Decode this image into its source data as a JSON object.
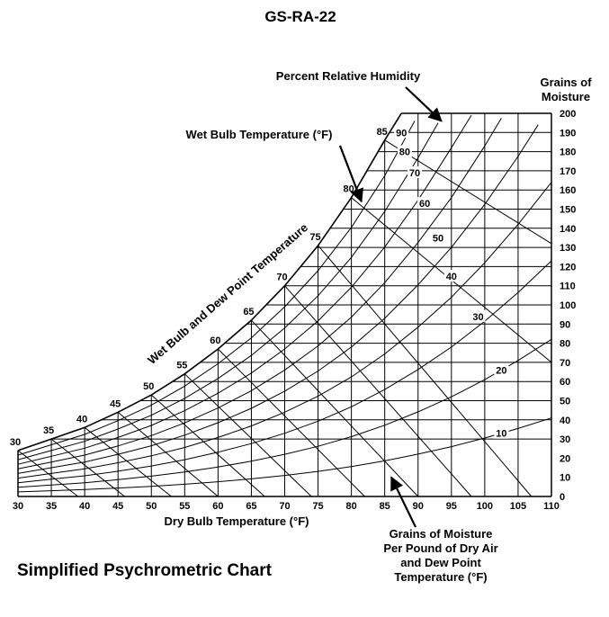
{
  "header": {
    "title": "GS-RA-22"
  },
  "footer": {
    "title": "Simplified Psychrometric Chart"
  },
  "chart_data": {
    "type": "line",
    "title": "Simplified Psychrometric Chart",
    "xlabel": "Dry Bulb Temperature (°F)",
    "ylabel": "Grains of Moisture",
    "ylabel_lines": [
      "Grains of",
      "Moisture"
    ],
    "xlim": [
      30,
      110
    ],
    "ylim": [
      0,
      200
    ],
    "x_ticks": [
      30,
      35,
      40,
      45,
      50,
      55,
      60,
      65,
      70,
      75,
      80,
      85,
      90,
      95,
      100,
      105,
      110
    ],
    "y_ticks": [
      0,
      10,
      20,
      30,
      40,
      50,
      60,
      70,
      80,
      90,
      100,
      110,
      120,
      130,
      140,
      150,
      160,
      170,
      180,
      190,
      200
    ],
    "saturation_curve": {
      "label": "Wet Bulb and Dew Point Temperature",
      "points": [
        [
          30,
          24
        ],
        [
          35,
          30
        ],
        [
          40,
          36
        ],
        [
          45,
          44
        ],
        [
          50,
          53
        ],
        [
          55,
          64
        ],
        [
          60,
          77
        ],
        [
          65,
          92
        ],
        [
          70,
          110
        ],
        [
          75,
          131
        ],
        [
          80,
          156
        ],
        [
          85,
          186
        ],
        [
          87.5,
          200
        ]
      ],
      "labels": [
        "30",
        "35",
        "40",
        "45",
        "50",
        "55",
        "60",
        "65",
        "70",
        "75",
        "80",
        "85"
      ]
    },
    "relative_humidity": {
      "label": "Percent Relative Humidity",
      "series": [
        {
          "name": "10",
          "values": [
            [
              30,
              2.4
            ],
            [
              35,
              3.0
            ],
            [
              40,
              3.6
            ],
            [
              45,
              4.4
            ],
            [
              50,
              5.3
            ],
            [
              55,
              6.4
            ],
            [
              60,
              7.7
            ],
            [
              65,
              9.2
            ],
            [
              70,
              11.0
            ],
            [
              75,
              13.1
            ],
            [
              80,
              15.6
            ],
            [
              85,
              18.6
            ],
            [
              90,
              22.1
            ],
            [
              95,
              26.0
            ],
            [
              100,
              30.5
            ],
            [
              105,
              35.5
            ],
            [
              110,
              41.0
            ]
          ],
          "label_at": [
            102.5,
            33
          ]
        },
        {
          "name": "20",
          "values": [
            [
              30,
              4.8
            ],
            [
              35,
              6.0
            ],
            [
              40,
              7.2
            ],
            [
              45,
              8.8
            ],
            [
              50,
              10.6
            ],
            [
              55,
              12.8
            ],
            [
              60,
              15.4
            ],
            [
              65,
              18.4
            ],
            [
              70,
              22.0
            ],
            [
              75,
              26.2
            ],
            [
              80,
              31.2
            ],
            [
              85,
              37.2
            ],
            [
              90,
              44.2
            ],
            [
              95,
              52.0
            ],
            [
              100,
              61.0
            ],
            [
              105,
              71.0
            ],
            [
              110,
              82.0
            ]
          ],
          "label_at": [
            102.5,
            66
          ]
        },
        {
          "name": "30",
          "values": [
            [
              30,
              7.2
            ],
            [
              35,
              9.0
            ],
            [
              40,
              10.8
            ],
            [
              45,
              13.2
            ],
            [
              50,
              15.9
            ],
            [
              55,
              19.2
            ],
            [
              60,
              23.1
            ],
            [
              65,
              27.6
            ],
            [
              70,
              33.0
            ],
            [
              75,
              39.3
            ],
            [
              80,
              46.8
            ],
            [
              85,
              55.8
            ],
            [
              90,
              66.3
            ],
            [
              95,
              78.0
            ],
            [
              100,
              91.5
            ],
            [
              105,
              106.5
            ],
            [
              110,
              123.0
            ]
          ],
          "label_at": [
            99,
            94
          ]
        },
        {
          "name": "40",
          "values": [
            [
              30,
              9.6
            ],
            [
              35,
              12.0
            ],
            [
              40,
              14.4
            ],
            [
              45,
              17.6
            ],
            [
              50,
              21.2
            ],
            [
              55,
              25.6
            ],
            [
              60,
              30.8
            ],
            [
              65,
              36.8
            ],
            [
              70,
              44.0
            ],
            [
              75,
              52.4
            ],
            [
              80,
              62.4
            ],
            [
              85,
              74.4
            ],
            [
              90,
              88.4
            ],
            [
              95,
              104.0
            ],
            [
              100,
              122.0
            ],
            [
              105,
              142.0
            ],
            [
              110,
              164.0
            ]
          ],
          "label_at": [
            95,
            115
          ]
        },
        {
          "name": "50",
          "values": [
            [
              30,
              12.0
            ],
            [
              35,
              15.0
            ],
            [
              40,
              18.0
            ],
            [
              45,
              22.0
            ],
            [
              50,
              26.5
            ],
            [
              55,
              32.0
            ],
            [
              60,
              38.5
            ],
            [
              65,
              46.0
            ],
            [
              70,
              55.0
            ],
            [
              75,
              65.5
            ],
            [
              80,
              78.0
            ],
            [
              85,
              93.0
            ],
            [
              90,
              110.5
            ],
            [
              95,
              130.0
            ],
            [
              100,
              152.5
            ],
            [
              105,
              177.5
            ],
            [
              108,
              194.0
            ]
          ],
          "label_at": [
            93,
            135
          ]
        },
        {
          "name": "60",
          "values": [
            [
              30,
              14.4
            ],
            [
              35,
              18.0
            ],
            [
              40,
              21.6
            ],
            [
              45,
              26.4
            ],
            [
              50,
              31.8
            ],
            [
              55,
              38.4
            ],
            [
              60,
              46.2
            ],
            [
              65,
              55.2
            ],
            [
              70,
              66.0
            ],
            [
              75,
              78.6
            ],
            [
              80,
              93.6
            ],
            [
              85,
              111.6
            ],
            [
              90,
              132.6
            ],
            [
              95,
              156.0
            ],
            [
              100,
              183.0
            ],
            [
              102.5,
              197.5
            ]
          ],
          "label_at": [
            91,
            153
          ]
        },
        {
          "name": "70",
          "values": [
            [
              30,
              16.8
            ],
            [
              35,
              21.0
            ],
            [
              40,
              25.2
            ],
            [
              45,
              30.8
            ],
            [
              50,
              37.1
            ],
            [
              55,
              44.8
            ],
            [
              60,
              53.9
            ],
            [
              65,
              64.4
            ],
            [
              70,
              77.0
            ],
            [
              75,
              91.7
            ],
            [
              80,
              109.2
            ],
            [
              85,
              130.2
            ],
            [
              90,
              154.7
            ],
            [
              95,
              182.0
            ],
            [
              98,
              199.0
            ]
          ],
          "label_at": [
            89.5,
            169
          ]
        },
        {
          "name": "80",
          "values": [
            [
              30,
              19.2
            ],
            [
              35,
              24.0
            ],
            [
              40,
              28.8
            ],
            [
              45,
              35.2
            ],
            [
              50,
              42.4
            ],
            [
              55,
              51.2
            ],
            [
              60,
              61.6
            ],
            [
              65,
              73.6
            ],
            [
              70,
              88.0
            ],
            [
              75,
              104.8
            ],
            [
              80,
              124.8
            ],
            [
              85,
              148.8
            ],
            [
              90,
              176.8
            ],
            [
              93,
              195.0
            ]
          ],
          "label_at": [
            88,
            180
          ]
        },
        {
          "name": "90",
          "values": [
            [
              30,
              21.6
            ],
            [
              35,
              27.0
            ],
            [
              40,
              32.4
            ],
            [
              45,
              39.6
            ],
            [
              50,
              47.7
            ],
            [
              55,
              57.6
            ],
            [
              60,
              69.3
            ],
            [
              65,
              82.8
            ],
            [
              70,
              99.0
            ],
            [
              75,
              117.9
            ],
            [
              80,
              140.4
            ],
            [
              85,
              167.4
            ],
            [
              89.5,
              196.0
            ]
          ],
          "label_at": [
            87.5,
            190
          ]
        }
      ]
    },
    "wet_bulb_lines": {
      "label": "Wet Bulb Temperature (°F)",
      "series": [
        {
          "name": "30",
          "values": [
            [
              30,
              24
            ],
            [
              39,
              0
            ]
          ]
        },
        {
          "name": "35",
          "values": [
            [
              35,
              30
            ],
            [
              46,
              0
            ]
          ]
        },
        {
          "name": "40",
          "values": [
            [
              40,
              36
            ],
            [
              53,
              0
            ]
          ]
        },
        {
          "name": "45",
          "values": [
            [
              45,
              44
            ],
            [
              60,
              0
            ]
          ]
        },
        {
          "name": "50",
          "values": [
            [
              50,
              53
            ],
            [
              67,
              0
            ]
          ]
        },
        {
          "name": "55",
          "values": [
            [
              55,
              64
            ],
            [
              74,
              0
            ]
          ]
        },
        {
          "name": "60",
          "values": [
            [
              60,
              77
            ],
            [
              82,
              0
            ]
          ]
        },
        {
          "name": "65",
          "values": [
            [
              65,
              92
            ],
            [
              90,
              0
            ]
          ]
        },
        {
          "name": "70",
          "values": [
            [
              70,
              110
            ],
            [
              98,
              0
            ]
          ]
        },
        {
          "name": "75",
          "values": [
            [
              75,
              131
            ],
            [
              107,
              0
            ]
          ]
        },
        {
          "name": "80",
          "values": [
            [
              80,
              156
            ],
            [
              110,
              70
            ]
          ]
        },
        {
          "name": "85",
          "values": [
            [
              85,
              186
            ],
            [
              110,
              132
            ]
          ]
        }
      ]
    },
    "annotations": [
      {
        "text": "Percent Relative Humidity",
        "arrow_to": [
          93.5,
          196
        ]
      },
      {
        "text": "Wet Bulb Temperature (°F)",
        "arrow_to": [
          81.5,
          154
        ]
      },
      {
        "text_lines": [
          "Grains of Moisture",
          "Per Pound of Dry Air",
          "and Dew Point",
          "Temperature (°F)"
        ],
        "arrow_to": [
          86,
          10
        ]
      }
    ],
    "grid": true
  }
}
